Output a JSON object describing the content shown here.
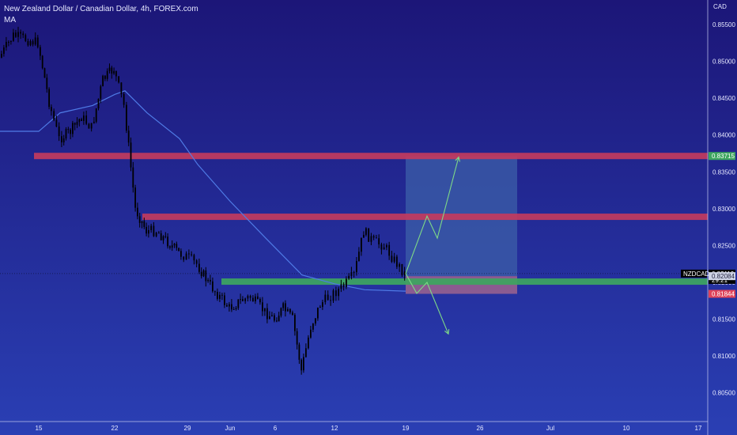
{
  "header": {
    "title": "New Zealand Dollar / Canadian Dollar, 4h, FOREX.com",
    "indicator": "MA"
  },
  "colors": {
    "bg_top": "#1c1678",
    "bg_bottom": "#2a3fb4",
    "candle": "#000000",
    "ma_line": "#4f7be6",
    "resistance": "#c23b5e",
    "support": "#3da55f",
    "projection_arrow": "#7ed987",
    "target_zone": "#3c5fa8",
    "stop_zone": "#b66e8a",
    "axis_text": "#e6e8ff"
  },
  "chart_data": {
    "type": "candlestick",
    "symbol": "NZDCAD",
    "price_axis_unit": "CAD",
    "ylim": [
      0.8025,
      0.858
    ],
    "y_ticks": [
      "0.85500",
      "0.85000",
      "0.84500",
      "0.84000",
      "0.83500",
      "0.83000",
      "0.82500",
      "0.82000",
      "0.81500",
      "0.81000",
      "0.80500"
    ],
    "x_ticks": [
      "15",
      "22",
      "29",
      "Jun",
      "6",
      "12",
      "19",
      "26",
      "Jul",
      "10",
      "17"
    ],
    "close_path": [
      {
        "date": "15",
        "price": 0.8525
      },
      {
        "date": "16",
        "price": 0.8445
      },
      {
        "date": "17",
        "price": 0.8395
      },
      {
        "date": "18",
        "price": 0.8405
      },
      {
        "date": "19",
        "price": 0.8425
      },
      {
        "date": "20",
        "price": 0.841
      },
      {
        "date": "21",
        "price": 0.8475
      },
      {
        "date": "22",
        "price": 0.849
      },
      {
        "date": "23",
        "price": 0.844
      },
      {
        "date": "24",
        "price": 0.83
      },
      {
        "date": "25",
        "price": 0.827
      },
      {
        "date": "26",
        "price": 0.827
      },
      {
        "date": "27",
        "price": 0.8255
      },
      {
        "date": "28",
        "price": 0.824
      },
      {
        "date": "29",
        "price": 0.8235
      },
      {
        "date": "30",
        "price": 0.8225
      },
      {
        "date": "31",
        "price": 0.82
      },
      {
        "date": "Jun",
        "price": 0.8165
      },
      {
        "date": "2",
        "price": 0.8175
      },
      {
        "date": "3",
        "price": 0.818
      },
      {
        "date": "5",
        "price": 0.816
      },
      {
        "date": "6",
        "price": 0.815
      },
      {
        "date": "7",
        "price": 0.8165
      },
      {
        "date": "8",
        "price": 0.815
      },
      {
        "date": "9",
        "price": 0.808
      },
      {
        "date": "10",
        "price": 0.814
      },
      {
        "date": "11",
        "price": 0.817
      },
      {
        "date": "12",
        "price": 0.8185
      },
      {
        "date": "13",
        "price": 0.8195
      },
      {
        "date": "14",
        "price": 0.821
      },
      {
        "date": "15",
        "price": 0.827
      },
      {
        "date": "16",
        "price": 0.8255
      },
      {
        "date": "17",
        "price": 0.825
      },
      {
        "date": "18",
        "price": 0.823
      },
      {
        "date": "19",
        "price": 0.8212
      }
    ],
    "moving_average": [
      {
        "date": "15",
        "price": 0.8405
      },
      {
        "date": "17",
        "price": 0.843
      },
      {
        "date": "20",
        "price": 0.844
      },
      {
        "date": "22",
        "price": 0.8455
      },
      {
        "date": "23",
        "price": 0.846
      },
      {
        "date": "25",
        "price": 0.843
      },
      {
        "date": "28",
        "price": 0.8395
      },
      {
        "date": "30",
        "price": 0.836
      },
      {
        "date": "Jun",
        "price": 0.831
      },
      {
        "date": "5",
        "price": 0.826
      },
      {
        "date": "9",
        "price": 0.821
      },
      {
        "date": "12",
        "price": 0.8198
      },
      {
        "date": "15",
        "price": 0.819
      },
      {
        "date": "19",
        "price": 0.8188
      }
    ],
    "horizontal_levels": [
      {
        "price": 0.83715,
        "from": "15",
        "to": "17",
        "color": "#c23b5e"
      },
      {
        "price": 0.8289,
        "from": "25",
        "to": "17",
        "color": "#c23b5e"
      },
      {
        "price": 0.8201,
        "from": "30",
        "to": "17",
        "color": "#3da55f"
      }
    ],
    "position": {
      "from": "19",
      "to": "28",
      "entry": 0.82084,
      "target": 0.83715,
      "stop": 0.81844
    },
    "projections": [
      {
        "direction": "up",
        "path": [
          {
            "date": "19",
            "price": 0.8212
          },
          {
            "date": "21",
            "price": 0.829
          },
          {
            "date": "22",
            "price": 0.826
          },
          {
            "date": "24",
            "price": 0.837
          }
        ]
      },
      {
        "direction": "down",
        "path": [
          {
            "date": "19",
            "price": 0.8212
          },
          {
            "date": "20",
            "price": 0.8185
          },
          {
            "date": "21",
            "price": 0.82
          },
          {
            "date": "23",
            "price": 0.813
          }
        ]
      }
    ],
    "price_labels": [
      {
        "text": "0.83715",
        "value": 0.83715,
        "bg": "#3da55f",
        "fg": "#ffffff"
      },
      {
        "text": "0.82119",
        "value": 0.82119,
        "bg": "#000000",
        "fg": "#ffffff",
        "tag": "NZDCAD",
        "sub": "29:21"
      },
      {
        "text": "0.82084",
        "value": 0.82084,
        "bg": "#cfd3e6",
        "fg": "#1e1e3a"
      },
      {
        "text": "0.81844",
        "value": 0.81844,
        "bg": "#e0435a",
        "fg": "#ffffff"
      }
    ],
    "grid": false,
    "legend": "none"
  }
}
